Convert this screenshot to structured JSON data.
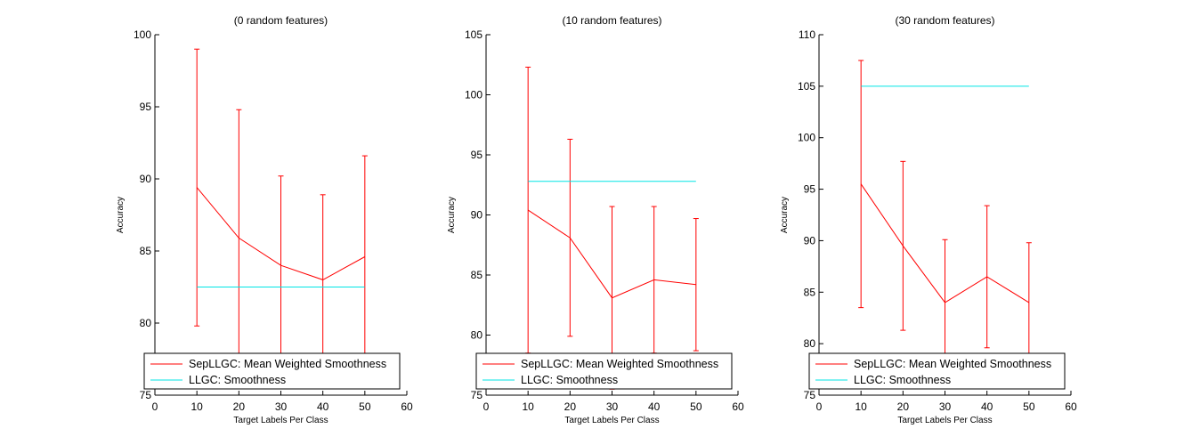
{
  "chart_data": [
    {
      "type": "line",
      "title": "(0 random features)",
      "xlabel": "Target Labels Per Class",
      "ylabel": "Accuracy",
      "xlim": [
        0,
        60
      ],
      "ylim": [
        75,
        100
      ],
      "xticks": [
        "0",
        "10",
        "20",
        "30",
        "40",
        "50",
        "60"
      ],
      "yticks": [
        "75",
        "80",
        "85",
        "90",
        "95",
        "100"
      ],
      "x": [
        10,
        20,
        30,
        40,
        50
      ],
      "series": [
        {
          "name": "SepLLGC: Mean Weighted Smoothness",
          "color": "#ff0000",
          "values": [
            89.4,
            85.9,
            84.0,
            83.0,
            84.6
          ],
          "errors": [
            9.6,
            8.9,
            6.2,
            5.9,
            7.0
          ]
        },
        {
          "name": "LLGC: Smoothness",
          "color": "#00e5e5",
          "values": [
            82.5,
            82.5,
            82.5,
            82.5,
            82.5
          ]
        }
      ],
      "legend": "bottom"
    },
    {
      "type": "line",
      "title": "(10 random features)",
      "xlabel": "Target Labels Per Class",
      "ylabel": "Accuracy",
      "xlim": [
        0,
        60
      ],
      "ylim": [
        75,
        105
      ],
      "xticks": [
        "0",
        "10",
        "20",
        "30",
        "40",
        "50",
        "60"
      ],
      "yticks": [
        "75",
        "80",
        "85",
        "90",
        "95",
        "100",
        "105"
      ],
      "x": [
        10,
        20,
        30,
        40,
        50
      ],
      "series": [
        {
          "name": "SepLLGC: Mean Weighted Smoothness",
          "color": "#ff0000",
          "values": [
            90.4,
            88.1,
            83.1,
            84.6,
            84.2
          ],
          "errors": [
            11.9,
            8.2,
            7.6,
            6.1,
            5.5
          ]
        },
        {
          "name": "LLGC: Smoothness",
          "color": "#00e5e5",
          "values": [
            92.8,
            92.8,
            92.8,
            92.8,
            92.8
          ]
        }
      ],
      "legend": "bottom"
    },
    {
      "type": "line",
      "title": "(30 random features)",
      "xlabel": "Target Labels Per Class",
      "ylabel": "Accuracy",
      "xlim": [
        0,
        60
      ],
      "ylim": [
        75,
        110
      ],
      "xticks": [
        "0",
        "10",
        "20",
        "30",
        "40",
        "50",
        "60"
      ],
      "yticks": [
        "75",
        "80",
        "85",
        "90",
        "95",
        "100",
        "105",
        "110"
      ],
      "x": [
        10,
        20,
        30,
        40,
        50
      ],
      "series": [
        {
          "name": "SepLLGC: Mean Weighted Smoothness",
          "color": "#ff0000",
          "values": [
            95.5,
            89.5,
            84.0,
            86.5,
            84.0
          ],
          "errors": [
            12.0,
            8.2,
            6.1,
            6.9,
            5.8
          ]
        },
        {
          "name": "LLGC: Smoothness",
          "color": "#00e5e5",
          "values": [
            105.0,
            105.0,
            105.0,
            105.0,
            105.0
          ]
        }
      ],
      "legend": "bottom"
    }
  ]
}
